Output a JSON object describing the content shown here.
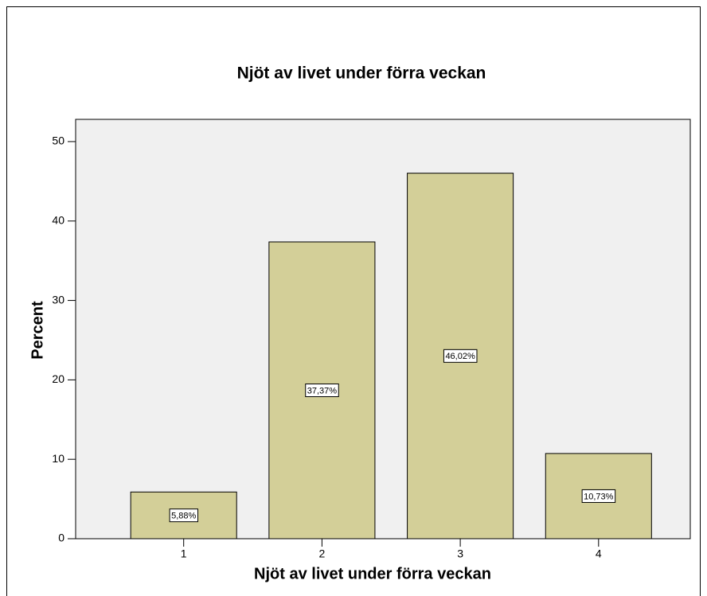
{
  "chart_data": {
    "type": "bar",
    "title": "Njöt av livet under förra veckan",
    "x_label": "Njöt av livet under förra veckan",
    "y_label": "Percent",
    "categories": [
      "1",
      "2",
      "3",
      "4"
    ],
    "values": [
      5.88,
      37.37,
      46.02,
      10.73
    ],
    "value_labels": [
      "5,88%",
      "37,37%",
      "46,02%",
      "10,73%"
    ],
    "color": "#d3cf98",
    "ylim": [
      0,
      52.8
    ],
    "yticks": [
      0,
      10,
      20,
      30,
      40,
      50
    ],
    "grid": false
  }
}
